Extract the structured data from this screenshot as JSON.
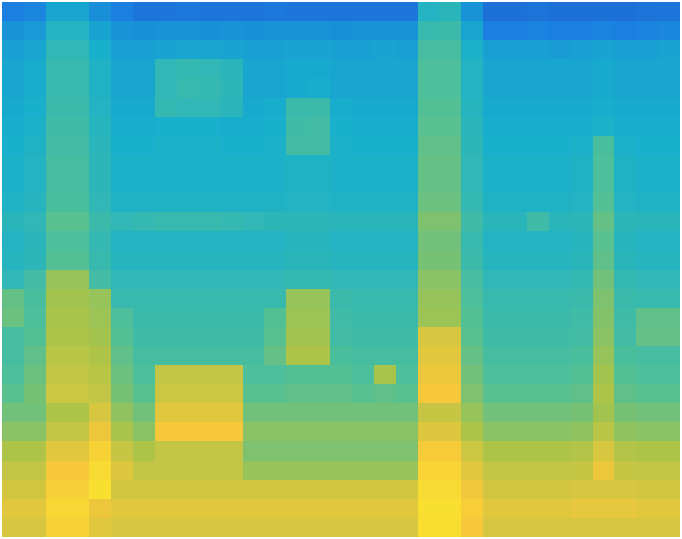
{
  "chart_data": {
    "type": "heatmap",
    "tick_labels": false,
    "zlim": [
      0,
      100
    ],
    "cells": [
      [
        30,
        32,
        42,
        42,
        35,
        30,
        26,
        26,
        27,
        26,
        26,
        26,
        27,
        26,
        26,
        26,
        26,
        26,
        26,
        48,
        50,
        36,
        24,
        24,
        25,
        24,
        24,
        24,
        24,
        25,
        26
      ],
      [
        36,
        38,
        48,
        48,
        41,
        36,
        35,
        36,
        36,
        35,
        36,
        35,
        36,
        36,
        36,
        35,
        36,
        36,
        36,
        54,
        55,
        42,
        30,
        30,
        31,
        30,
        30,
        31,
        30,
        31,
        32
      ],
      [
        40,
        42,
        52,
        52,
        45,
        40,
        40,
        41,
        42,
        42,
        41,
        40,
        40,
        41,
        41,
        40,
        40,
        41,
        40,
        58,
        58,
        46,
        40,
        40,
        40,
        39,
        40,
        41,
        40,
        40,
        41
      ],
      [
        42,
        44,
        54,
        54,
        47,
        42,
        42,
        52,
        53,
        52,
        50,
        42,
        42,
        43,
        43,
        42,
        42,
        42,
        42,
        60,
        60,
        48,
        42,
        42,
        42,
        42,
        42,
        43,
        42,
        42,
        42
      ],
      [
        42,
        44,
        54,
        54,
        47,
        42,
        42,
        52,
        54,
        53,
        51,
        42,
        42,
        43,
        44,
        42,
        42,
        42,
        42,
        60,
        60,
        48,
        42,
        42,
        42,
        42,
        42,
        43,
        42,
        42,
        42
      ],
      [
        43,
        45,
        55,
        55,
        48,
        43,
        43,
        53,
        52,
        52,
        50,
        43,
        44,
        55,
        55,
        44,
        43,
        43,
        43,
        61,
        61,
        49,
        43,
        43,
        43,
        43,
        43,
        44,
        43,
        43,
        43
      ],
      [
        44,
        46,
        56,
        56,
        49,
        44,
        44,
        45,
        45,
        45,
        44,
        44,
        45,
        56,
        57,
        45,
        44,
        44,
        44,
        62,
        62,
        50,
        44,
        44,
        44,
        44,
        44,
        46,
        44,
        44,
        44
      ],
      [
        45,
        47,
        57,
        57,
        50,
        45,
        45,
        46,
        46,
        46,
        45,
        45,
        46,
        57,
        57,
        46,
        45,
        45,
        45,
        63,
        63,
        51,
        45,
        45,
        45,
        45,
        46,
        59,
        46,
        45,
        45
      ],
      [
        46,
        48,
        58,
        58,
        51,
        46,
        46,
        46,
        46,
        46,
        46,
        46,
        46,
        47,
        47,
        46,
        46,
        46,
        46,
        64,
        64,
        52,
        46,
        46,
        46,
        46,
        47,
        60,
        47,
        46,
        46
      ],
      [
        46,
        48,
        58,
        58,
        51,
        46,
        46,
        46,
        46,
        46,
        46,
        46,
        46,
        47,
        47,
        46,
        46,
        46,
        46,
        64,
        64,
        52,
        46,
        46,
        46,
        46,
        47,
        60,
        47,
        46,
        46
      ],
      [
        47,
        49,
        59,
        59,
        52,
        47,
        47,
        47,
        47,
        47,
        47,
        47,
        47,
        48,
        48,
        47,
        47,
        47,
        47,
        65,
        65,
        53,
        47,
        47,
        47,
        47,
        48,
        61,
        48,
        47,
        47
      ],
      [
        50,
        52,
        62,
        62,
        55,
        52,
        53,
        54,
        54,
        54,
        53,
        52,
        51,
        51,
        51,
        50,
        50,
        50,
        50,
        68,
        68,
        56,
        50,
        50,
        56,
        50,
        51,
        64,
        51,
        50,
        50
      ],
      [
        48,
        50,
        60,
        60,
        53,
        48,
        48,
        48,
        48,
        48,
        48,
        48,
        48,
        49,
        49,
        48,
        48,
        48,
        48,
        66,
        66,
        54,
        48,
        48,
        48,
        48,
        49,
        62,
        49,
        48,
        48
      ],
      [
        49,
        51,
        61,
        61,
        54,
        49,
        49,
        49,
        49,
        49,
        49,
        49,
        49,
        50,
        50,
        49,
        49,
        49,
        49,
        67,
        67,
        55,
        49,
        49,
        49,
        49,
        50,
        63,
        50,
        49,
        49
      ],
      [
        52,
        57,
        72,
        72,
        57,
        52,
        52,
        52,
        52,
        52,
        52,
        52,
        52,
        53,
        53,
        52,
        52,
        52,
        52,
        70,
        70,
        58,
        52,
        52,
        52,
        52,
        53,
        66,
        53,
        52,
        52
      ],
      [
        64,
        59,
        74,
        74,
        72,
        54,
        54,
        54,
        54,
        54,
        54,
        54,
        54,
        72,
        72,
        55,
        54,
        54,
        54,
        72,
        72,
        60,
        54,
        54,
        54,
        54,
        55,
        68,
        55,
        54,
        54
      ],
      [
        65,
        60,
        75,
        75,
        73,
        60,
        55,
        55,
        55,
        55,
        55,
        55,
        61,
        73,
        73,
        56,
        55,
        55,
        55,
        73,
        73,
        61,
        55,
        55,
        55,
        55,
        56,
        69,
        56,
        63,
        63
      ],
      [
        58,
        61,
        76,
        76,
        74,
        61,
        56,
        56,
        56,
        56,
        56,
        56,
        62,
        74,
        74,
        57,
        56,
        56,
        56,
        84,
        84,
        62,
        56,
        56,
        56,
        56,
        57,
        70,
        57,
        64,
        64
      ],
      [
        58,
        63,
        78,
        78,
        76,
        63,
        58,
        58,
        58,
        58,
        58,
        58,
        64,
        76,
        76,
        59,
        58,
        58,
        58,
        86,
        86,
        64,
        58,
        58,
        58,
        58,
        59,
        72,
        59,
        58,
        58
      ],
      [
        60,
        65,
        80,
        80,
        78,
        65,
        60,
        80,
        80,
        80,
        80,
        60,
        60,
        61,
        61,
        61,
        60,
        75,
        60,
        88,
        88,
        66,
        60,
        60,
        60,
        60,
        61,
        74,
        61,
        60,
        60
      ],
      [
        62,
        67,
        82,
        82,
        80,
        67,
        62,
        82,
        82,
        82,
        82,
        62,
        62,
        63,
        63,
        63,
        62,
        63,
        62,
        90,
        90,
        68,
        62,
        62,
        62,
        62,
        63,
        76,
        63,
        62,
        62
      ],
      [
        66,
        66,
        76,
        76,
        84,
        71,
        66,
        86,
        86,
        86,
        86,
        66,
        66,
        66,
        66,
        66,
        66,
        66,
        66,
        81,
        81,
        72,
        66,
        66,
        66,
        66,
        67,
        74,
        67,
        66,
        66
      ],
      [
        70,
        70,
        80,
        80,
        88,
        75,
        70,
        90,
        90,
        90,
        90,
        70,
        70,
        70,
        70,
        70,
        70,
        70,
        70,
        85,
        85,
        76,
        70,
        70,
        70,
        70,
        71,
        78,
        71,
        70,
        70
      ],
      [
        76,
        76,
        86,
        86,
        94,
        81,
        76,
        80,
        80,
        80,
        80,
        68,
        68,
        68,
        68,
        68,
        68,
        68,
        68,
        91,
        91,
        82,
        76,
        76,
        76,
        76,
        77,
        84,
        77,
        76,
        76
      ],
      [
        80,
        80,
        90,
        90,
        98,
        85,
        80,
        80,
        80,
        80,
        80,
        72,
        72,
        72,
        72,
        72,
        72,
        72,
        72,
        95,
        95,
        86,
        80,
        80,
        80,
        80,
        81,
        88,
        81,
        80,
        80
      ],
      [
        83,
        83,
        93,
        93,
        100,
        83,
        83,
        83,
        83,
        83,
        83,
        83,
        83,
        83,
        83,
        83,
        83,
        83,
        83,
        98,
        98,
        89,
        83,
        83,
        83,
        83,
        84,
        84,
        84,
        83,
        83
      ],
      [
        86,
        86,
        96,
        96,
        88,
        86,
        86,
        86,
        86,
        86,
        86,
        86,
        86,
        86,
        86,
        86,
        86,
        86,
        86,
        100,
        100,
        92,
        86,
        86,
        86,
        86,
        87,
        87,
        87,
        86,
        86
      ],
      [
        84,
        84,
        94,
        94,
        86,
        84,
        84,
        84,
        84,
        84,
        84,
        84,
        84,
        84,
        84,
        84,
        84,
        84,
        84,
        99,
        99,
        90,
        84,
        84,
        84,
        84,
        84,
        84,
        84,
        84,
        84
      ]
    ]
  }
}
